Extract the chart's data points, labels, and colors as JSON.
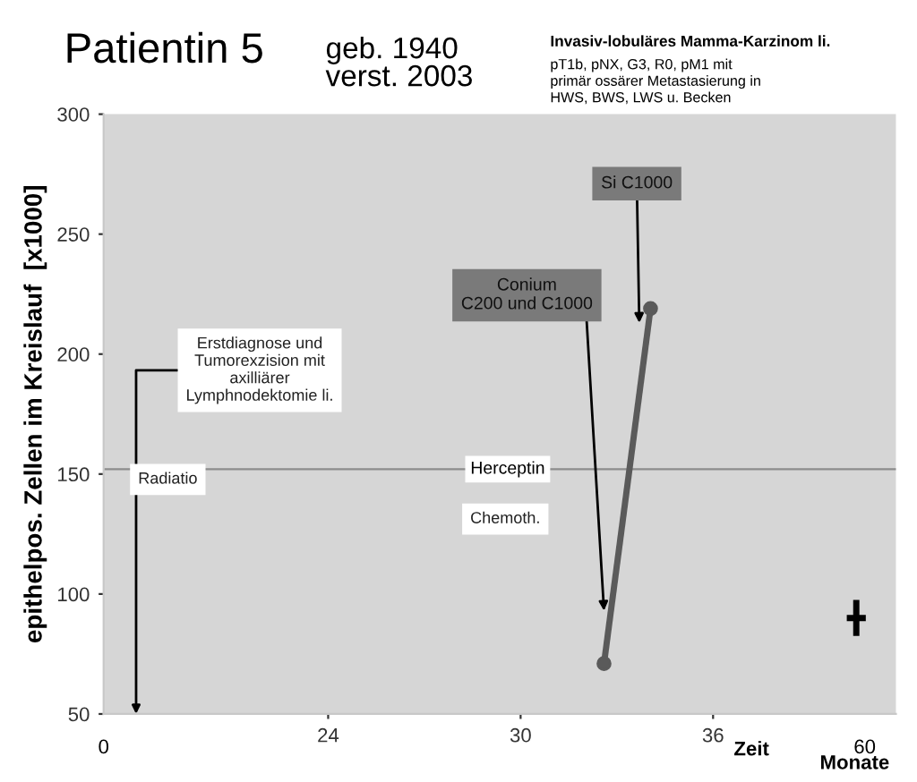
{
  "chart_data": {
    "type": "line",
    "title": "Patientin 5",
    "subtitle": "geb. 1940\nverst. 2003",
    "xlabel": "Zeit",
    "ylabel": "epithelpos. Zellen im Kreislauf  [x1000]",
    "series": [
      {
        "color": "#5a5a5a",
        "x": [
          32.6,
          34.05
        ],
        "values": [
          71,
          219
        ]
      }
    ],
    "marker": "circle",
    "line_style": "solid",
    "xlim": [
      17,
      41.7
    ],
    "xticks": [
      24,
      30,
      36
    ],
    "ylim": [
      50,
      300
    ],
    "yticks": [
      50,
      100,
      150,
      200,
      250,
      300
    ],
    "grid": false,
    "ref_lines": [
      {
        "axis": "y",
        "value": 152,
        "label": "Herceptin",
        "color": "#8c8c8c",
        "line_style": "solid"
      }
    ],
    "annotations": [
      "Invasiv-lobuläres Mamma-Karzinom li.",
      "pT1b, pNX, G3, R0, pM1 mit\nprimär ossärer Metastasierung in\nHWS, BWS, LWS u. Becken",
      "Monate",
      "0",
      "60",
      "Erstdiagnose und\nTumorexzision mit\naxilliärer\nLymphnodektomie li.",
      "Radiatio",
      "Chemoth.",
      {
        "text": "Si C1000",
        "x": 33.7,
        "y": 213
      },
      {
        "text": "Conium\nC200 und C1000",
        "x": 32.6,
        "y": 93
      }
    ]
  }
}
